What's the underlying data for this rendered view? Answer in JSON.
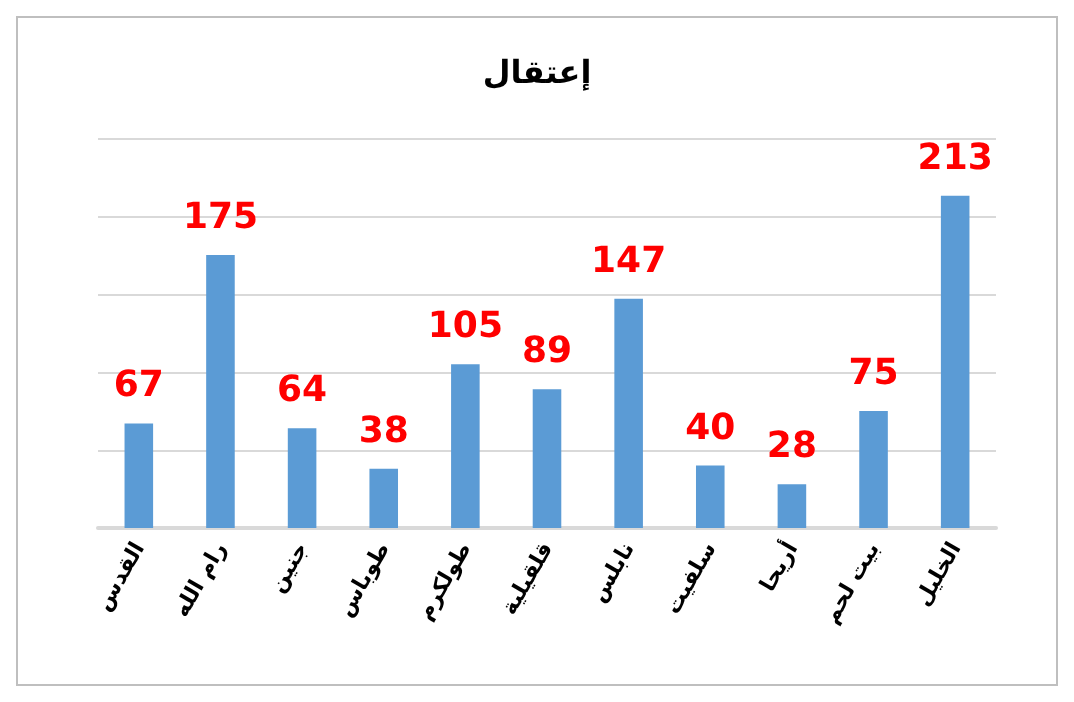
{
  "chart_data": {
    "type": "bar",
    "title": "إعتقال",
    "categories": [
      "القدس",
      "رام الله",
      "جنين",
      "طوباس",
      "طولكرم",
      "قلقيلية",
      "نابلس",
      "سلفيت",
      "أريحا",
      "بيت لحم",
      "الخليل"
    ],
    "values": [
      67,
      175,
      64,
      38,
      105,
      89,
      147,
      40,
      28,
      75,
      213
    ],
    "color": "#5b9bd5",
    "data_labels": true,
    "ylim": [
      0,
      250
    ],
    "yticks": [
      0,
      50,
      100,
      150,
      200,
      250
    ],
    "grid": "y",
    "tick_labels": "x"
  }
}
